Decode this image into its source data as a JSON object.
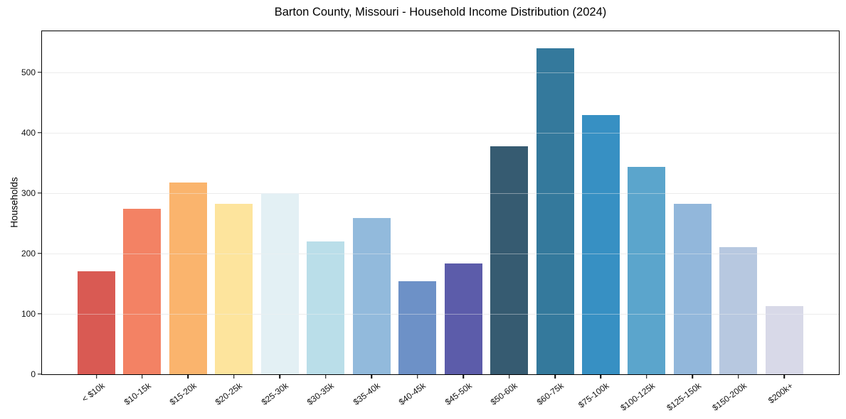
{
  "chart_data": {
    "type": "bar",
    "title": "Barton County, Missouri - Household Income Distribution (2024)",
    "xlabel": "",
    "ylabel": "Households",
    "categories": [
      "< $10k",
      "$10-15k",
      "$15-20k",
      "$20-25k",
      "$25-30k",
      "$30-35k",
      "$35-40k",
      "$40-45k",
      "$45-50k",
      "$50-60k",
      "$60-75k",
      "$75-100k",
      "$100-125k",
      "$125-150k",
      "$150-200k",
      "$200k+"
    ],
    "values": [
      170,
      274,
      318,
      282,
      300,
      220,
      259,
      154,
      184,
      378,
      540,
      429,
      343,
      282,
      210,
      113
    ],
    "bar_colors": [
      "#d95a53",
      "#f38264",
      "#fab46d",
      "#fde49d",
      "#e3f0f4",
      "#badee9",
      "#92badc",
      "#6d91c7",
      "#5c5caa",
      "#365b71",
      "#34799c",
      "#3790c3",
      "#5ba5cc",
      "#92b7db",
      "#b7c8e0",
      "#d8d9e8"
    ],
    "y_ticks": [
      0,
      100,
      200,
      300,
      400,
      500
    ],
    "ylim": [
      0,
      568
    ],
    "grid": "horizontal",
    "legend": "none",
    "plot_background": "#ffffff",
    "gridline_color": "#e9e9e9"
  }
}
